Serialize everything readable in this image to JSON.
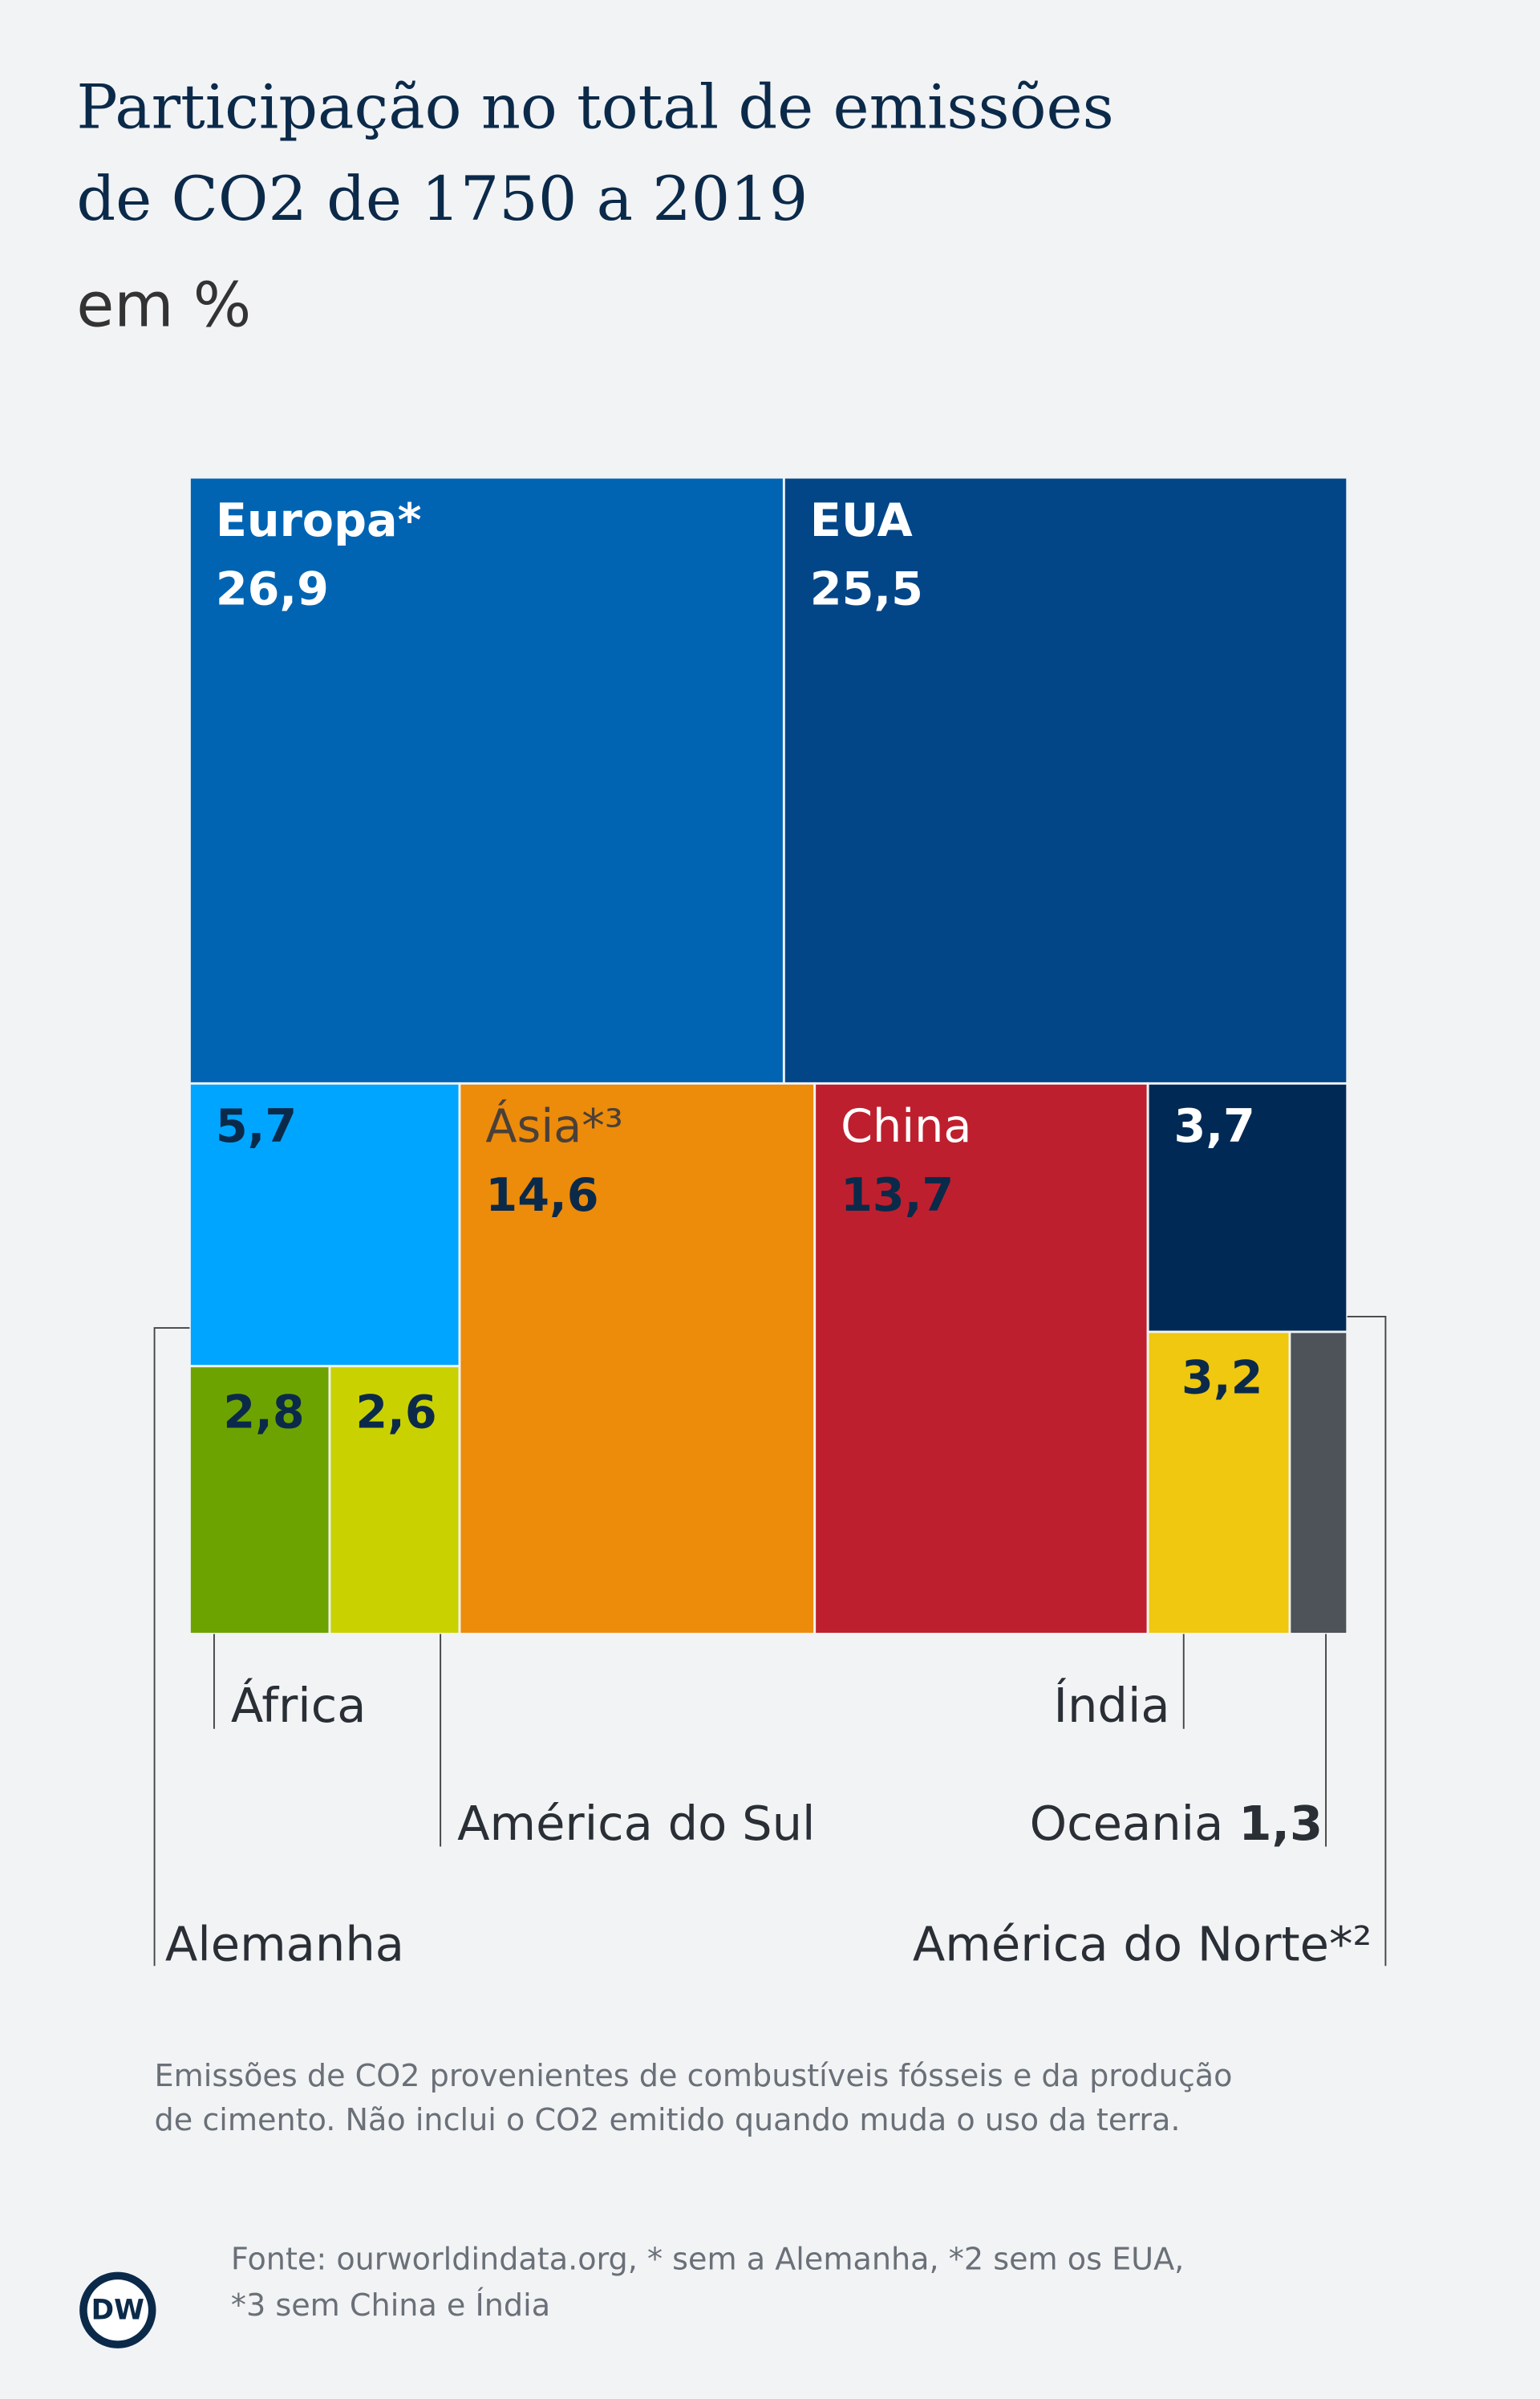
{
  "title": [
    "Participação no total de emissões",
    "de CO2 de 1750 a 2019"
  ],
  "subtitle": "em %",
  "chart_data": {
    "type": "treemap",
    "categories": [
      "Europa*",
      "EUA",
      "Alemanha",
      "África",
      "América do Sul",
      "Ásia*³",
      "China",
      "América do Norte*²",
      "Índia",
      "Oceania"
    ],
    "values": [
      26.9,
      25.5,
      5.7,
      2.8,
      2.6,
      14.6,
      13.7,
      3.7,
      3.2,
      1.3
    ],
    "value_labels": [
      "26,9",
      "25,5",
      "5,7",
      "2,8",
      "2,6",
      "14,6",
      "13,7",
      "3,7",
      "3,2",
      "1,3"
    ],
    "colors": [
      "#0064b3",
      "#024688",
      "#00a5ff",
      "#6da300",
      "#c9d200",
      "#ed8b0b",
      "#be1f2e",
      "#002a55",
      "#efc80f",
      "#4e5259"
    ]
  },
  "note": [
    "Emissões de CO2 provenientes de combustíveis fósseis e da produção",
    "de cimento. Não inclui o CO2 emitido quando muda o uso da terra."
  ],
  "source": [
    "Fonte: ourworldindata.org, * sem a Alemanha, *2 sem os EUA,",
    "*3 sem China e Índia"
  ],
  "logo": "DW"
}
